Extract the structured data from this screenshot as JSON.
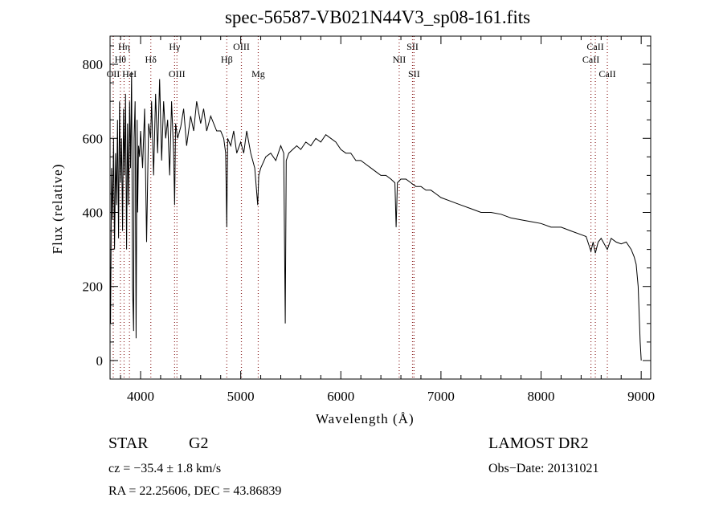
{
  "chart_data": {
    "type": "line",
    "title": "spec-56587-VB021N44V3_sp08-161.fits",
    "xlabel": "Wavelength (Å)",
    "ylabel": "Flux (relative)",
    "xlim": [
      3695,
      9095
    ],
    "ylim": [
      -50,
      876
    ],
    "xticks": [
      4000,
      5000,
      6000,
      7000,
      8000,
      9000
    ],
    "yticks": [
      0,
      200,
      400,
      600,
      800
    ],
    "grid": false,
    "series": [
      {
        "name": "spectrum",
        "x": [
          3700,
          3710,
          3720,
          3730,
          3740,
          3750,
          3760,
          3770,
          3780,
          3790,
          3800,
          3810,
          3820,
          3830,
          3840,
          3850,
          3860,
          3870,
          3880,
          3890,
          3900,
          3910,
          3920,
          3930,
          3935,
          3945,
          3955,
          3965,
          3970,
          3980,
          3990,
          4000,
          4020,
          4040,
          4060,
          4080,
          4100,
          4110,
          4130,
          4150,
          4170,
          4190,
          4210,
          4230,
          4250,
          4270,
          4290,
          4310,
          4330,
          4340,
          4350,
          4370,
          4400,
          4430,
          4460,
          4500,
          4530,
          4560,
          4600,
          4630,
          4660,
          4700,
          4730,
          4760,
          4800,
          4830,
          4850,
          4861,
          4870,
          4900,
          4930,
          4960,
          5000,
          5030,
          5060,
          5100,
          5140,
          5170,
          5180,
          5200,
          5250,
          5300,
          5350,
          5400,
          5430,
          5445,
          5455,
          5480,
          5520,
          5560,
          5600,
          5650,
          5700,
          5750,
          5800,
          5850,
          5900,
          5950,
          6000,
          6050,
          6100,
          6150,
          6200,
          6250,
          6300,
          6350,
          6400,
          6450,
          6500,
          6540,
          6552,
          6565,
          6600,
          6650,
          6700,
          6750,
          6800,
          6850,
          6900,
          6950,
          7000,
          7100,
          7200,
          7300,
          7400,
          7500,
          7600,
          7700,
          7800,
          7900,
          8000,
          8100,
          8200,
          8300,
          8400,
          8450,
          8498,
          8520,
          8542,
          8570,
          8600,
          8662,
          8700,
          8750,
          8800,
          8850,
          8900,
          8930,
          8950,
          8970,
          8990,
          9000
        ],
        "y": [
          100,
          520,
          380,
          600,
          300,
          560,
          420,
          650,
          330,
          700,
          480,
          600,
          350,
          680,
          500,
          720,
          300,
          640,
          420,
          700,
          520,
          780,
          200,
          80,
          600,
          700,
          60,
          650,
          400,
          580,
          550,
          620,
          520,
          680,
          320,
          640,
          600,
          700,
          500,
          720,
          560,
          760,
          540,
          700,
          600,
          650,
          500,
          700,
          560,
          420,
          640,
          600,
          630,
          680,
          580,
          660,
          620,
          700,
          640,
          680,
          620,
          660,
          640,
          620,
          620,
          600,
          560,
          360,
          600,
          580,
          620,
          560,
          590,
          560,
          620,
          560,
          520,
          420,
          500,
          520,
          550,
          560,
          540,
          580,
          560,
          100,
          540,
          560,
          570,
          580,
          570,
          590,
          580,
          600,
          590,
          610,
          600,
          590,
          570,
          560,
          560,
          540,
          540,
          530,
          520,
          510,
          500,
          500,
          490,
          480,
          360,
          480,
          490,
          490,
          480,
          470,
          470,
          460,
          460,
          450,
          440,
          430,
          420,
          410,
          400,
          400,
          395,
          385,
          380,
          375,
          370,
          360,
          360,
          350,
          340,
          335,
          295,
          320,
          290,
          320,
          330,
          300,
          330,
          320,
          315,
          320,
          300,
          280,
          260,
          200,
          50,
          0
        ]
      }
    ],
    "line_markers": [
      {
        "label": "OII",
        "wave": 3727,
        "row": 2
      },
      {
        "label": "Hθ",
        "wave": 3798,
        "row": 1
      },
      {
        "label": "Hη",
        "wave": 3835,
        "row": 0
      },
      {
        "label": "HeI",
        "wave": 3889,
        "row": 2
      },
      {
        "label": "Hδ",
        "wave": 4102,
        "row": 1
      },
      {
        "label": "Hγ",
        "wave": 4340,
        "row": 0
      },
      {
        "label": "OIII",
        "wave": 4363,
        "row": 2
      },
      {
        "label": "Hβ",
        "wave": 4861,
        "row": 1
      },
      {
        "label": "OIII",
        "wave": 5007,
        "row": 0
      },
      {
        "label": "Mg",
        "wave": 5175,
        "row": 2
      },
      {
        "label": "NII",
        "wave": 6583,
        "row": 1
      },
      {
        "label": "SII",
        "wave": 6716,
        "row": 0
      },
      {
        "label": "SII",
        "wave": 6731,
        "row": 2
      },
      {
        "label": "CaII",
        "wave": 8498,
        "row": 1
      },
      {
        "label": "CaII",
        "wave": 8542,
        "row": 0
      },
      {
        "label": "CaII",
        "wave": 8662,
        "row": 2
      }
    ],
    "colors": {
      "line": "#000000",
      "marker": "#8b2020"
    }
  },
  "info": {
    "class": "STAR",
    "subclass": "G2",
    "survey": "LAMOST DR2",
    "cz": "cz = −35.4 ± 1.8 km/s",
    "obs_date": "Obs−Date: 20131021",
    "coords": "RA =  22.25606, DEC =  43.86839"
  }
}
